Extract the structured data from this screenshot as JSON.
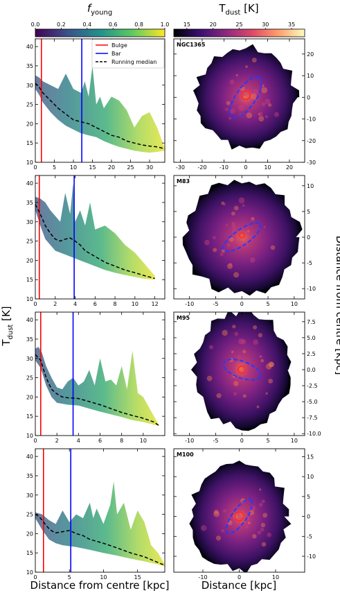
{
  "colorbars": {
    "left": {
      "label_main": "f",
      "label_sub": "young",
      "ticks": [
        "0.0",
        "0.2",
        "0.4",
        "0.6",
        "0.8",
        "1.0"
      ],
      "range": [
        0,
        1
      ],
      "colors": [
        "#440154",
        "#3b528b",
        "#21918c",
        "#5ec962",
        "#fde725"
      ]
    },
    "right": {
      "label_main": "T",
      "label_sub": "dust",
      "label_unit": " [K]",
      "ticks": [
        "15",
        "20",
        "25",
        "30",
        "35"
      ],
      "range": [
        12.5,
        37.5
      ],
      "colors": [
        "#000004",
        "#3b0f70",
        "#8c2981",
        "#de4968",
        "#fe9f6d",
        "#fcfdbf"
      ]
    }
  },
  "labels": {
    "left_y_main": "T",
    "left_y_sub": "dust",
    "left_y_unit": " [K]",
    "left_x": "Distance from centre [kpc]",
    "right_x": "Distance [kpc]",
    "right_y": "Distance from centre [kpc]"
  },
  "legend": {
    "bulge": "Bulge",
    "bar": "Bar",
    "median": "Running median"
  },
  "colors": {
    "bulge": "#ff0000",
    "bar": "#0000ff",
    "median": "#000000",
    "ellipse": "#1f3cff",
    "circle": "#ff2a2a"
  },
  "chart_data": [
    {
      "type": "area",
      "galaxy": "NGC1365",
      "ylim": [
        10,
        42
      ],
      "xlim": [
        0,
        34
      ],
      "yticks": [
        10,
        15,
        20,
        25,
        30,
        35,
        40
      ],
      "xticks": [
        0,
        5,
        10,
        15,
        20,
        25,
        30
      ],
      "bulge_radius": 1.6,
      "bar_radius": 12.2,
      "median": {
        "x": [
          0,
          1,
          2,
          4,
          6,
          8,
          10,
          12,
          14,
          16,
          18,
          20,
          22,
          24,
          26,
          28,
          30,
          32,
          34
        ],
        "y": [
          30.5,
          29.5,
          28,
          26,
          24,
          22.5,
          21,
          20.5,
          20,
          19,
          18,
          17,
          16.5,
          15.5,
          15,
          14.5,
          14.2,
          14,
          13.5
        ]
      },
      "upper": {
        "x": [
          0,
          1,
          2,
          4,
          6,
          8,
          10,
          12,
          13,
          14,
          15,
          16,
          17,
          18,
          20,
          22,
          24,
          26,
          28,
          30,
          32,
          34
        ],
        "y": [
          32.5,
          32,
          31,
          30,
          29,
          33,
          29,
          28,
          31,
          27,
          35,
          25,
          27,
          24,
          27,
          26,
          23.5,
          19,
          22,
          23,
          19,
          13.5
        ]
      },
      "lower": {
        "x": [
          0,
          1,
          2,
          4,
          6,
          8,
          10,
          12,
          14,
          16,
          18,
          20,
          22,
          24,
          26,
          28,
          30,
          32,
          34
        ],
        "y": [
          29,
          27.5,
          25.5,
          23,
          21,
          19.5,
          18.5,
          17.5,
          17,
          16.5,
          15.5,
          14.7,
          14,
          13.5,
          13,
          12.7,
          12.5,
          12.7,
          13
        ]
      }
    },
    {
      "type": "area",
      "galaxy": "M83",
      "ylim": [
        10,
        42
      ],
      "xlim": [
        0,
        13
      ],
      "yticks": [
        10,
        15,
        20,
        25,
        30,
        35,
        40
      ],
      "xticks": [
        0,
        2,
        4,
        6,
        8,
        10,
        12
      ],
      "bulge_radius": 0.4,
      "bar_radius": 3.9,
      "median": {
        "x": [
          0,
          0.5,
          1,
          1.5,
          2,
          2.5,
          3,
          3.5,
          4,
          4.5,
          5,
          6,
          7,
          8,
          9,
          10,
          11,
          12
        ],
        "y": [
          34.5,
          32,
          29,
          27,
          25.5,
          25,
          25.5,
          25.8,
          25,
          24,
          22.5,
          21,
          19.5,
          18.5,
          17.5,
          16.8,
          16,
          15.3
        ]
      },
      "upper": {
        "x": [
          0,
          0.5,
          1,
          1.5,
          2,
          2.5,
          3,
          3.5,
          3.8,
          4,
          4.5,
          5,
          5.5,
          6,
          7,
          8,
          9,
          10,
          11,
          12
        ],
        "y": [
          36.5,
          36,
          35,
          33,
          31.5,
          30,
          37.5,
          32,
          40,
          30,
          33,
          29,
          35,
          28,
          29,
          27,
          24,
          22,
          19,
          16
        ]
      },
      "lower": {
        "x": [
          0,
          0.5,
          1,
          2,
          3,
          4,
          5,
          6,
          7,
          8,
          9,
          10,
          11,
          12
        ],
        "y": [
          33,
          29,
          25.5,
          22.5,
          21.5,
          20.5,
          19.5,
          18.5,
          17.5,
          16.8,
          16.2,
          15.7,
          15.2,
          15
        ]
      }
    },
    {
      "type": "area",
      "galaxy": "M95",
      "ylim": [
        10,
        42
      ],
      "xlim": [
        0,
        12
      ],
      "yticks": [
        10,
        15,
        20,
        25,
        30,
        35,
        40
      ],
      "xticks": [
        0,
        2,
        4,
        6,
        8,
        10
      ],
      "bulge_radius": 0.5,
      "bar_radius": 3.5,
      "median": {
        "x": [
          0,
          0.5,
          1,
          1.5,
          2,
          2.5,
          3,
          3.5,
          4,
          5,
          6,
          7,
          8,
          9,
          10,
          11,
          11.5
        ],
        "y": [
          31,
          29.5,
          25,
          22,
          20.8,
          20,
          19.8,
          19.7,
          19.6,
          18.8,
          18,
          17,
          16,
          15.2,
          14.5,
          13.5,
          12.5
        ]
      },
      "upper": {
        "x": [
          0,
          0.3,
          0.6,
          1,
          1.5,
          2,
          2.5,
          3,
          3.5,
          4,
          4.5,
          5,
          5.5,
          6,
          6.5,
          7,
          7.5,
          8,
          8.5,
          9,
          9.5,
          10,
          11,
          11.5
        ],
        "y": [
          32.5,
          33,
          31.5,
          28,
          25,
          22.5,
          22,
          24,
          25,
          23,
          24,
          27,
          23,
          30,
          24,
          24.5,
          23,
          28,
          22,
          32,
          21,
          20,
          15,
          12.5
        ]
      },
      "lower": {
        "x": [
          0,
          0.5,
          1,
          1.5,
          2,
          3,
          4,
          5,
          6,
          7,
          8,
          9,
          10,
          11,
          11.5
        ],
        "y": [
          29.5,
          27.5,
          23,
          20,
          18.5,
          18,
          17.8,
          17,
          16.2,
          15.5,
          14.8,
          14,
          13.5,
          12.8,
          12.5
        ]
      }
    },
    {
      "type": "area",
      "galaxy": "M100",
      "ylim": [
        10,
        42
      ],
      "xlim": [
        0,
        19
      ],
      "yticks": [
        10,
        15,
        20,
        25,
        30,
        35,
        40
      ],
      "xticks": [
        0,
        5,
        10,
        15
      ],
      "bulge_radius": 1.2,
      "bar_radius": 5.2,
      "median": {
        "x": [
          0,
          0.5,
          1,
          1.5,
          2,
          2.5,
          3,
          4,
          5,
          6,
          7,
          8,
          9,
          10,
          12,
          14,
          16,
          18,
          19
        ],
        "y": [
          25,
          24.5,
          23.5,
          22.3,
          21.3,
          20.6,
          20.2,
          20.5,
          20.8,
          20,
          19.5,
          18.5,
          18,
          17.5,
          16.3,
          15,
          14,
          12.5,
          11.8
        ]
      },
      "upper": {
        "x": [
          0,
          1,
          2,
          3,
          4,
          5,
          6,
          7,
          8,
          8.5,
          9,
          10,
          11,
          11.5,
          12,
          13,
          14,
          15,
          16,
          17,
          18,
          19
        ],
        "y": [
          25.5,
          25,
          23.5,
          22.5,
          26,
          23,
          25,
          24,
          28,
          24,
          26.5,
          22.5,
          27.5,
          33.5,
          25,
          28,
          21,
          26,
          23,
          17,
          15,
          12
        ]
      },
      "lower": {
        "x": [
          0,
          1,
          2,
          3,
          4,
          6,
          8,
          10,
          12,
          14,
          16,
          18,
          19
        ],
        "y": [
          24,
          21,
          18.5,
          17.5,
          17,
          16.5,
          15.8,
          15,
          14.3,
          13.5,
          12.8,
          12,
          11.5
        ]
      }
    },
    {
      "type": "heatmap",
      "galaxy": "NGC1365",
      "xlim": [
        -33,
        27
      ],
      "ylim": [
        -30,
        27
      ],
      "xticks": [
        -30,
        -20,
        -10,
        0,
        10,
        20
      ],
      "yticks": [
        -30,
        -20,
        -10,
        0,
        10,
        20
      ],
      "extent_radius": 24,
      "ellipse": {
        "cx": 0,
        "cy": 0,
        "a": 11,
        "b": 4.5,
        "angle": -55
      },
      "circle": {
        "cx": 0,
        "cy": 1,
        "r": 2
      }
    },
    {
      "type": "heatmap",
      "galaxy": "M83",
      "xlim": [
        -13,
        12
      ],
      "ylim": [
        -12,
        12
      ],
      "xticks": [
        -10,
        -5,
        0,
        5,
        10
      ],
      "yticks": [
        -10,
        -5,
        0,
        5,
        10
      ],
      "extent_radius": 11.5,
      "ellipse": {
        "cx": 0,
        "cy": 0,
        "a": 4.2,
        "b": 1.5,
        "angle": -35
      },
      "circle": {
        "cx": 0,
        "cy": 0.4,
        "r": 0.5
      }
    },
    {
      "type": "heatmap",
      "galaxy": "M95",
      "xlim": [
        -13,
        12
      ],
      "ylim": [
        -10.3,
        9
      ],
      "xticks": [
        -10,
        -5,
        0,
        5,
        10
      ],
      "yticks": [
        -10,
        -7.5,
        -5,
        -2.5,
        0,
        2.5,
        5,
        7.5
      ],
      "extent_radius": 9.5,
      "ellipse": {
        "cx": 0,
        "cy": 0,
        "a": 3.7,
        "b": 1.3,
        "angle": 20
      },
      "circle": {
        "cx": 0,
        "cy": 0,
        "r": 0.7
      }
    },
    {
      "type": "heatmap",
      "galaxy": "M100",
      "xlim": [
        -18,
        18
      ],
      "ylim": [
        -14,
        17
      ],
      "xticks": [
        -10,
        0,
        10
      ],
      "yticks": [
        -10,
        -5,
        0,
        5,
        10,
        15
      ],
      "extent_radius": 14,
      "ellipse": {
        "cx": 0,
        "cy": 0,
        "a": 5.5,
        "b": 1.8,
        "angle": -55
      },
      "circle": {
        "cx": 0,
        "cy": 0,
        "r": 1.2
      }
    }
  ]
}
